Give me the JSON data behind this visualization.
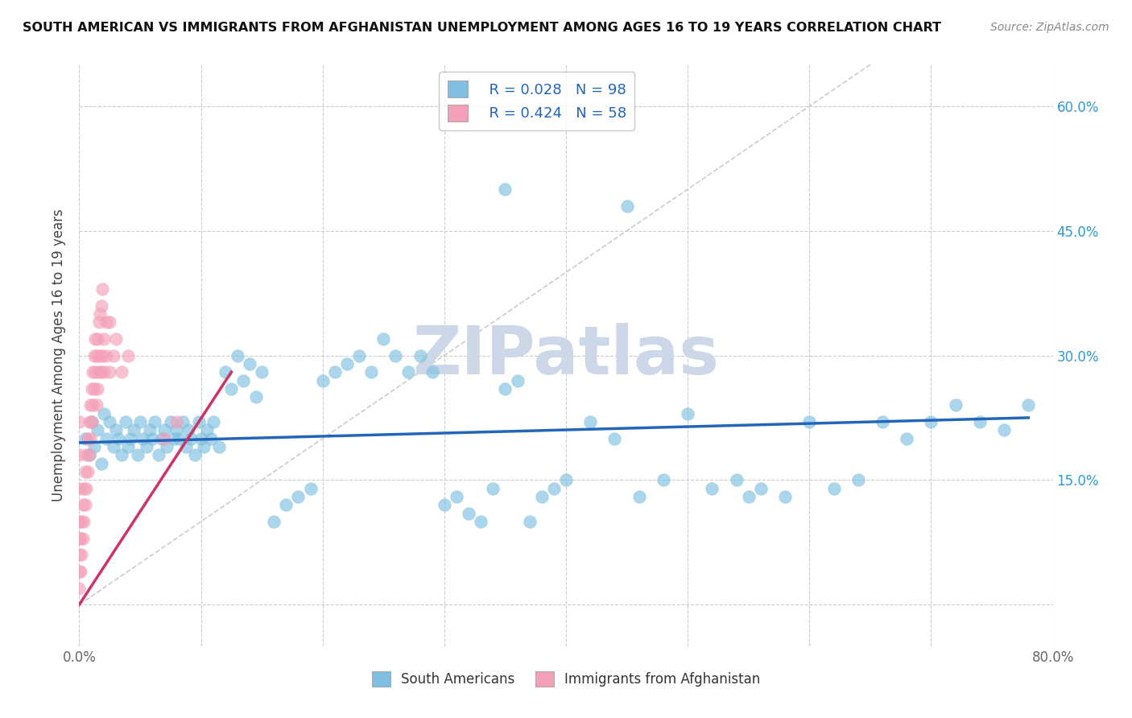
{
  "title": "SOUTH AMERICAN VS IMMIGRANTS FROM AFGHANISTAN UNEMPLOYMENT AMONG AGES 16 TO 19 YEARS CORRELATION CHART",
  "source": "Source: ZipAtlas.com",
  "ylabel": "Unemployment Among Ages 16 to 19 years",
  "xlim": [
    0.0,
    0.8
  ],
  "ylim": [
    -0.05,
    0.65
  ],
  "xtick_positions": [
    0.0,
    0.1,
    0.2,
    0.3,
    0.4,
    0.5,
    0.6,
    0.7,
    0.8
  ],
  "xticklabels": [
    "0.0%",
    "",
    "",
    "",
    "",
    "",
    "",
    "",
    "80.0%"
  ],
  "ytick_positions": [
    0.0,
    0.15,
    0.3,
    0.45,
    0.6
  ],
  "right_yticklabels": [
    "",
    "15.0%",
    "30.0%",
    "45.0%",
    "60.0%"
  ],
  "legend_r1": "R = 0.028",
  "legend_n1": "N = 98",
  "legend_r2": "R = 0.424",
  "legend_n2": "N = 58",
  "blue_color": "#7fbfdf",
  "pink_color": "#f4a0b8",
  "blue_line_color": "#2266bb",
  "pink_line_color": "#cc3366",
  "diag_line_color": "#cccccc",
  "legend_text_color": "#2266bb",
  "watermark_color": "#ccd8e8",
  "background": "#ffffff",
  "blue_scatter_x": [
    0.005,
    0.008,
    0.01,
    0.012,
    0.015,
    0.018,
    0.02,
    0.022,
    0.025,
    0.028,
    0.03,
    0.032,
    0.035,
    0.038,
    0.04,
    0.042,
    0.045,
    0.048,
    0.05,
    0.052,
    0.055,
    0.058,
    0.06,
    0.062,
    0.065,
    0.068,
    0.07,
    0.072,
    0.075,
    0.078,
    0.08,
    0.082,
    0.085,
    0.088,
    0.09,
    0.092,
    0.095,
    0.098,
    0.1,
    0.102,
    0.105,
    0.108,
    0.11,
    0.115,
    0.12,
    0.125,
    0.13,
    0.135,
    0.14,
    0.145,
    0.15,
    0.16,
    0.17,
    0.18,
    0.19,
    0.2,
    0.21,
    0.22,
    0.23,
    0.24,
    0.25,
    0.26,
    0.27,
    0.28,
    0.29,
    0.3,
    0.31,
    0.32,
    0.33,
    0.34,
    0.35,
    0.36,
    0.37,
    0.38,
    0.39,
    0.4,
    0.42,
    0.44,
    0.46,
    0.48,
    0.5,
    0.52,
    0.54,
    0.56,
    0.58,
    0.6,
    0.62,
    0.64,
    0.66,
    0.68,
    0.7,
    0.72,
    0.74,
    0.76,
    0.78,
    0.55,
    0.45,
    0.35
  ],
  "blue_scatter_y": [
    0.2,
    0.18,
    0.22,
    0.19,
    0.21,
    0.17,
    0.23,
    0.2,
    0.22,
    0.19,
    0.21,
    0.2,
    0.18,
    0.22,
    0.19,
    0.2,
    0.21,
    0.18,
    0.22,
    0.2,
    0.19,
    0.21,
    0.2,
    0.22,
    0.18,
    0.2,
    0.21,
    0.19,
    0.22,
    0.2,
    0.21,
    0.2,
    0.22,
    0.19,
    0.21,
    0.2,
    0.18,
    0.22,
    0.2,
    0.19,
    0.21,
    0.2,
    0.22,
    0.19,
    0.28,
    0.26,
    0.3,
    0.27,
    0.29,
    0.25,
    0.28,
    0.1,
    0.12,
    0.13,
    0.14,
    0.27,
    0.28,
    0.29,
    0.3,
    0.28,
    0.32,
    0.3,
    0.28,
    0.3,
    0.28,
    0.12,
    0.13,
    0.11,
    0.1,
    0.14,
    0.26,
    0.27,
    0.1,
    0.13,
    0.14,
    0.15,
    0.22,
    0.2,
    0.13,
    0.15,
    0.23,
    0.14,
    0.15,
    0.14,
    0.13,
    0.22,
    0.14,
    0.15,
    0.22,
    0.2,
    0.22,
    0.24,
    0.22,
    0.21,
    0.24,
    0.13,
    0.48,
    0.5
  ],
  "pink_scatter_x": [
    0.0,
    0.0,
    0.0,
    0.0,
    0.0,
    0.0,
    0.0,
    0.0,
    0.001,
    0.001,
    0.002,
    0.002,
    0.003,
    0.003,
    0.004,
    0.004,
    0.005,
    0.005,
    0.006,
    0.006,
    0.007,
    0.007,
    0.008,
    0.008,
    0.009,
    0.009,
    0.01,
    0.01,
    0.011,
    0.011,
    0.012,
    0.012,
    0.013,
    0.013,
    0.014,
    0.014,
    0.015,
    0.015,
    0.016,
    0.016,
    0.017,
    0.017,
    0.018,
    0.018,
    0.019,
    0.019,
    0.02,
    0.02,
    0.022,
    0.022,
    0.025,
    0.025,
    0.028,
    0.03,
    0.035,
    0.04,
    0.07,
    0.08
  ],
  "pink_scatter_y": [
    0.02,
    0.04,
    0.06,
    0.08,
    0.1,
    0.14,
    0.18,
    0.22,
    0.04,
    0.08,
    0.06,
    0.1,
    0.08,
    0.12,
    0.1,
    0.14,
    0.12,
    0.16,
    0.14,
    0.18,
    0.16,
    0.2,
    0.18,
    0.22,
    0.2,
    0.24,
    0.22,
    0.26,
    0.24,
    0.28,
    0.26,
    0.3,
    0.28,
    0.32,
    0.24,
    0.3,
    0.26,
    0.32,
    0.28,
    0.34,
    0.3,
    0.35,
    0.28,
    0.36,
    0.3,
    0.38,
    0.32,
    0.28,
    0.3,
    0.34,
    0.28,
    0.34,
    0.3,
    0.32,
    0.28,
    0.3,
    0.2,
    0.22
  ],
  "blue_line_x": [
    0.0,
    0.78
  ],
  "blue_line_y": [
    0.195,
    0.225
  ],
  "pink_line_x": [
    0.0,
    0.125
  ],
  "pink_line_y": [
    0.0,
    0.28
  ],
  "diag_line_x": [
    0.0,
    0.65
  ],
  "diag_line_y": [
    0.0,
    0.65
  ]
}
